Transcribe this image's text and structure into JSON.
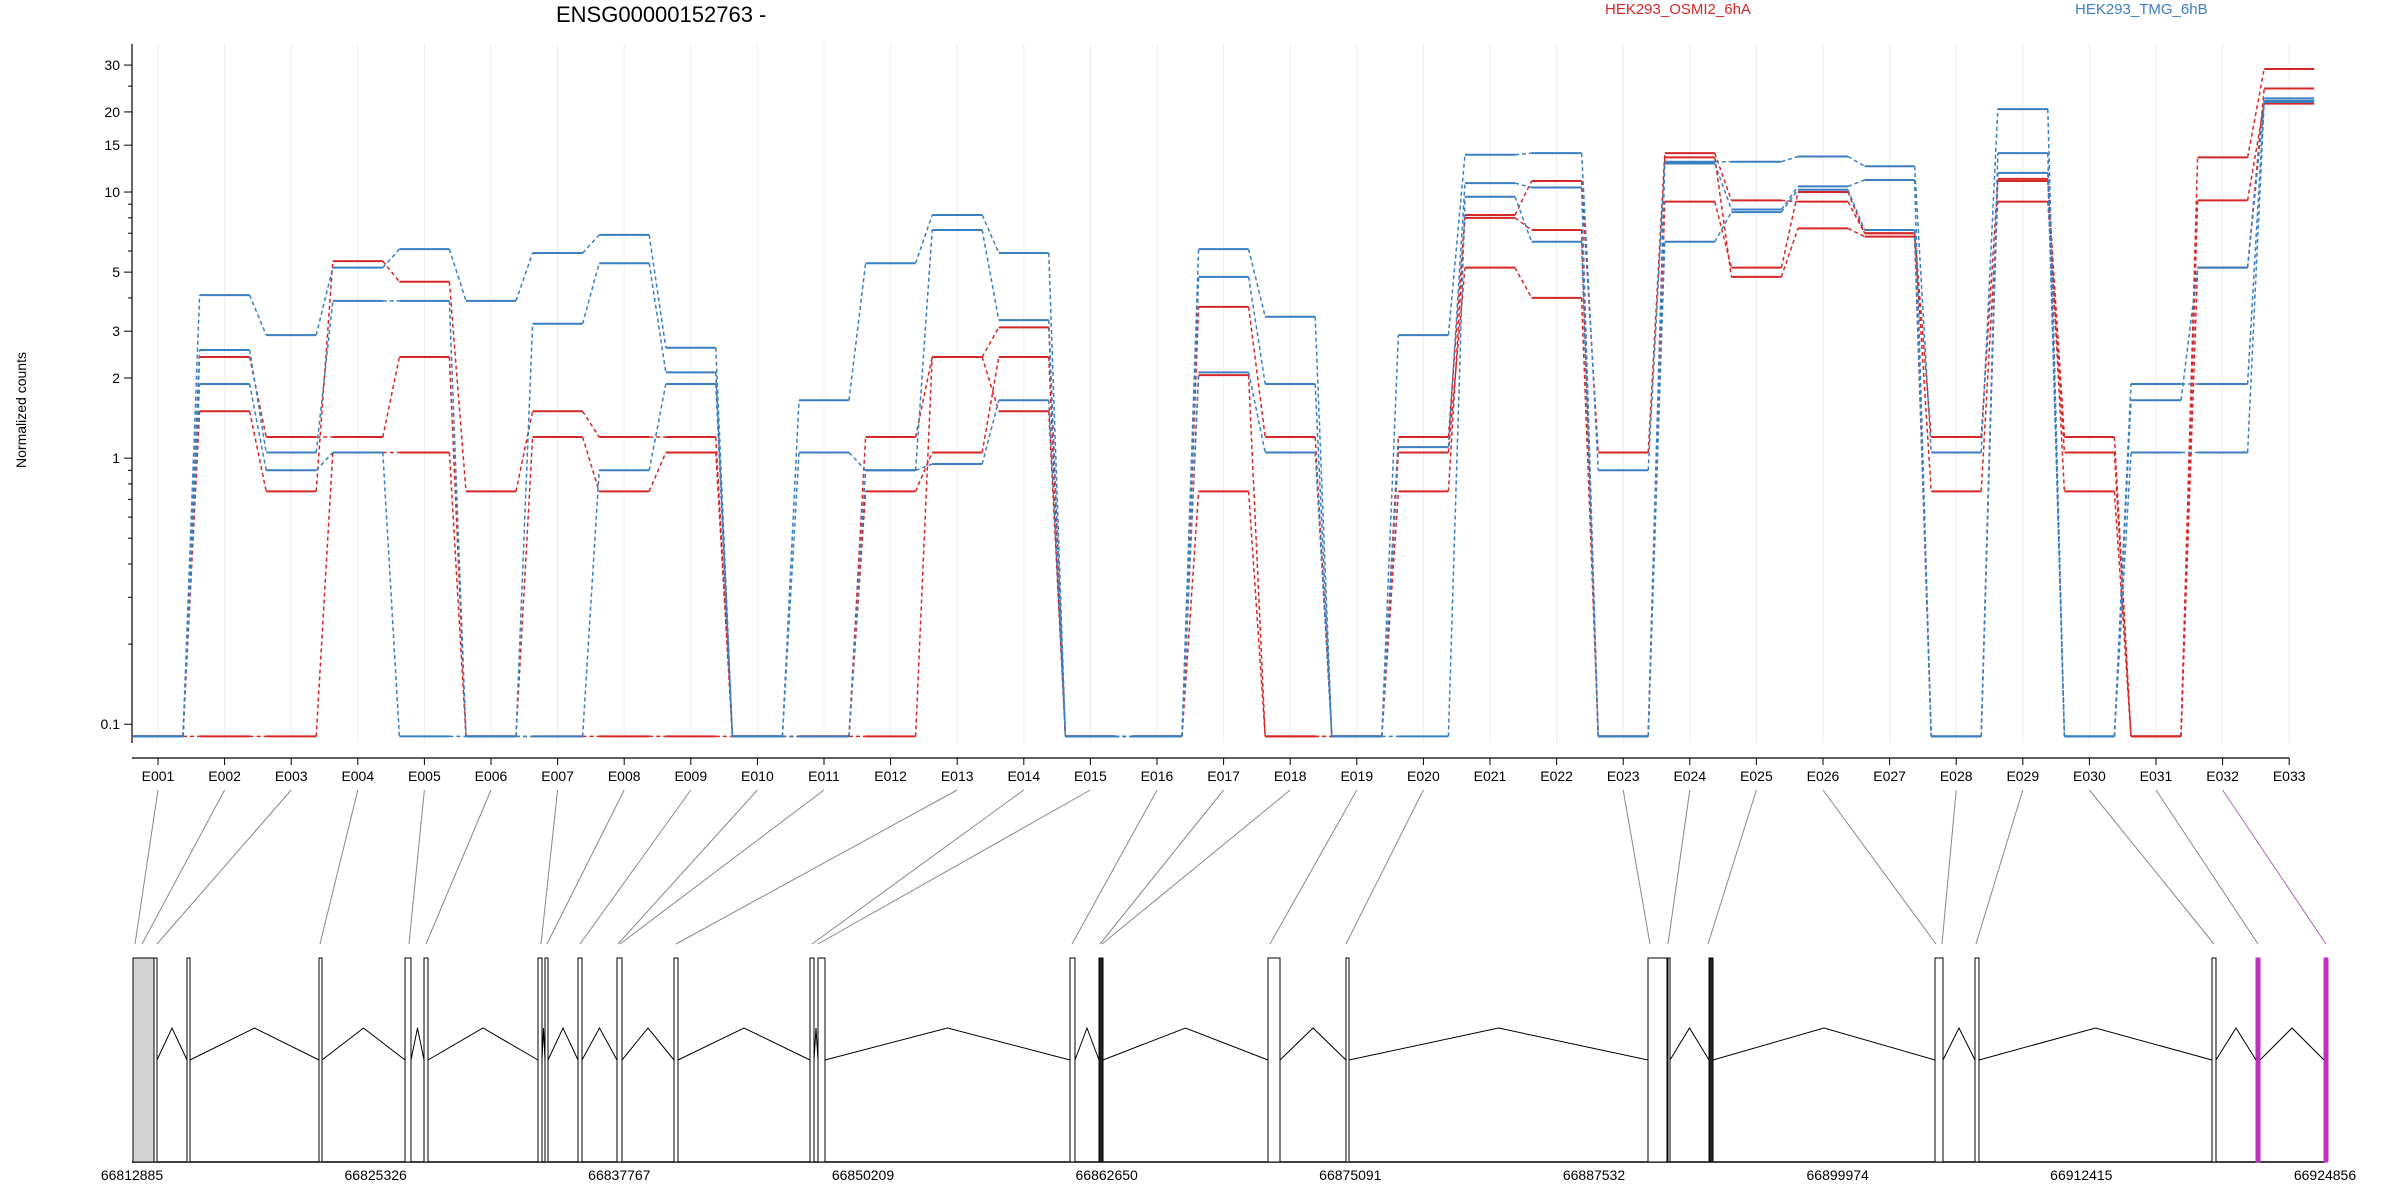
{
  "chart_data": {
    "type": "line",
    "title": "ENSG00000152763 -",
    "ylabel": "Normalized counts",
    "xlabel": "",
    "yscale": "log",
    "ylim": [
      0.085,
      36
    ],
    "ytick_labels": [
      "0.1",
      "1",
      "2",
      "3",
      "5",
      "10",
      "15",
      "20",
      "30"
    ],
    "grid": "vertical, light",
    "legend_position": "top",
    "categories": [
      "E001",
      "E002",
      "E003",
      "E004",
      "E005",
      "E006",
      "E007",
      "E008",
      "E009",
      "E010",
      "E011",
      "E012",
      "E013",
      "E014",
      "E015",
      "E016",
      "E017",
      "E018",
      "E019",
      "E020",
      "E021",
      "E022",
      "E023",
      "E024",
      "E025",
      "E026",
      "E027",
      "E028",
      "E029",
      "E030",
      "E031",
      "E032",
      "E033"
    ],
    "groups": [
      {
        "name": "HEK293_OSMI2_6hA",
        "color": "#d62728"
      },
      {
        "name": "HEK293_TMG_6hB",
        "color": "#3a7fc1"
      }
    ],
    "series": [
      {
        "group": "HEK293_OSMI2_6hA",
        "values": [
          0.09,
          1.5,
          0.75,
          5.5,
          4.6,
          0.75,
          1.5,
          1.2,
          1.2,
          0.09,
          0.09,
          1.2,
          2.4,
          3.1,
          0.09,
          0.09,
          3.7,
          1.2,
          0.09,
          1.2,
          8.2,
          11.0,
          1.05,
          14.0,
          9.3,
          9.2,
          7.0,
          1.2,
          11.0,
          1.2,
          0.09,
          13.5,
          29.0
        ]
      },
      {
        "group": "HEK293_OSMI2_6hA",
        "values": [
          0.09,
          2.4,
          1.2,
          1.2,
          2.4,
          0.09,
          1.2,
          0.75,
          1.05,
          0.09,
          0.09,
          0.75,
          1.05,
          2.4,
          0.09,
          0.09,
          0.75,
          0.09,
          0.09,
          0.75,
          8.0,
          7.2,
          0.09,
          9.2,
          5.2,
          10.0,
          7.0,
          0.75,
          9.2,
          1.05,
          0.09,
          9.3,
          21.5
        ]
      },
      {
        "group": "HEK293_OSMI2_6hA",
        "values": [
          0.09,
          0.09,
          0.09,
          1.05,
          1.05,
          0.09,
          0.09,
          0.09,
          0.09,
          0.09,
          0.09,
          0.09,
          2.4,
          1.5,
          0.09,
          0.09,
          2.05,
          0.09,
          0.09,
          1.05,
          5.2,
          4.0,
          0.09,
          13.5,
          4.8,
          7.3,
          6.8,
          0.09,
          11.2,
          0.75,
          0.09,
          5.2,
          24.5
        ]
      },
      {
        "group": "HEK293_TMG_6hB",
        "values": [
          0.09,
          4.1,
          2.9,
          5.2,
          6.1,
          3.9,
          5.9,
          6.9,
          2.6,
          0.09,
          1.65,
          5.4,
          8.2,
          5.9,
          0.09,
          0.09,
          6.1,
          3.4,
          0.09,
          2.9,
          13.8,
          14.0,
          0.9,
          13.0,
          13.0,
          13.6,
          12.5,
          1.05,
          20.5,
          0.09,
          1.9,
          1.9,
          22.5
        ]
      },
      {
        "group": "HEK293_TMG_6hB",
        "values": [
          0.09,
          2.55,
          1.05,
          3.9,
          3.9,
          0.09,
          3.2,
          5.4,
          2.1,
          0.09,
          1.05,
          0.9,
          7.2,
          3.3,
          0.09,
          0.09,
          4.8,
          1.9,
          0.09,
          1.1,
          10.8,
          10.4,
          0.09,
          12.8,
          8.6,
          10.5,
          11.1,
          0.09,
          14.0,
          0.09,
          1.05,
          1.05,
          22.0
        ]
      },
      {
        "group": "HEK293_TMG_6hB",
        "values": [
          0.09,
          1.9,
          0.9,
          1.05,
          0.09,
          0.09,
          0.09,
          0.9,
          1.9,
          0.09,
          0.09,
          0.9,
          0.95,
          1.65,
          0.09,
          0.09,
          2.1,
          1.05,
          0.09,
          0.09,
          9.6,
          6.5,
          0.09,
          6.5,
          8.4,
          10.2,
          7.2,
          0.09,
          11.8,
          0.09,
          1.65,
          5.2,
          21.8
        ]
      }
    ]
  },
  "gene_model": {
    "coordinate_labels": [
      "66812885",
      "66825326",
      "66837767",
      "66850209",
      "66862650",
      "66875091",
      "66887532",
      "66899974",
      "66912415",
      "66924856"
    ],
    "highlight_color": "#c030c0"
  }
}
